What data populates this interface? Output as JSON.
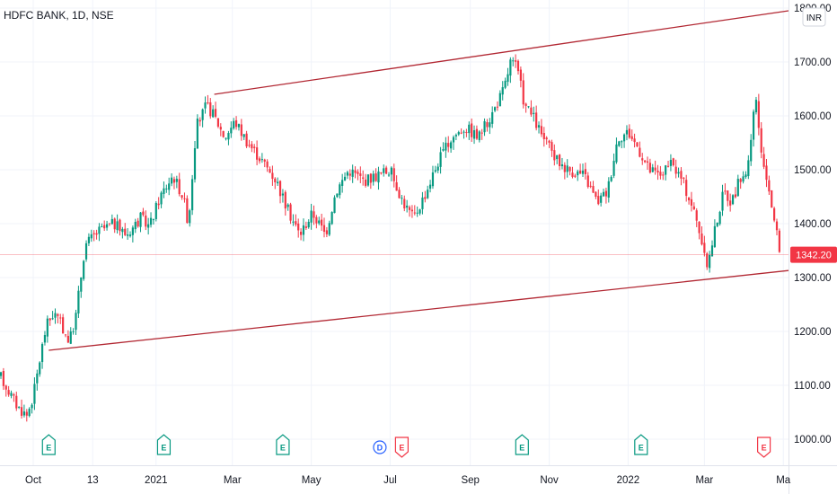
{
  "chart_data": {
    "type": "candlestick",
    "title": "HDFC BANK, 1D, NSE",
    "currency": "INR",
    "current_price": "1342.20",
    "ylim": [
      950,
      1810
    ],
    "y_ticks": [
      1000,
      1100,
      1200,
      1300,
      1400,
      1500,
      1600,
      1700,
      1800
    ],
    "y_tick_labels": [
      "1000.00",
      "1100.00",
      "1200.00",
      "1300.00",
      "1400.00",
      "1500.00",
      "1600.00",
      "1700.00",
      "1800.00"
    ],
    "x_ticks": [
      {
        "label": "Oct",
        "day": 0
      },
      {
        "label": "13",
        "day": 46
      },
      {
        "label": "2021",
        "day": 95
      },
      {
        "label": "Mar",
        "day": 154
      },
      {
        "label": "May",
        "day": 215
      },
      {
        "label": "Jul",
        "day": 276
      },
      {
        "label": "Sep",
        "day": 338
      },
      {
        "label": "Nov",
        "day": 399
      },
      {
        "label": "2022",
        "day": 460
      },
      {
        "label": "Mar",
        "day": 519
      },
      {
        "label": "Ma",
        "day": 580
      }
    ],
    "price_anchors": [
      [
        -25,
        1115
      ],
      [
        -12,
        1060
      ],
      [
        -5,
        1045
      ],
      [
        0,
        1080
      ],
      [
        6,
        1160
      ],
      [
        10,
        1210
      ],
      [
        16,
        1235
      ],
      [
        22,
        1210
      ],
      [
        28,
        1180
      ],
      [
        33,
        1230
      ],
      [
        40,
        1360
      ],
      [
        50,
        1385
      ],
      [
        62,
        1400
      ],
      [
        72,
        1380
      ],
      [
        83,
        1410
      ],
      [
        90,
        1395
      ],
      [
        98,
        1450
      ],
      [
        108,
        1490
      ],
      [
        116,
        1450
      ],
      [
        120,
        1400
      ],
      [
        126,
        1580
      ],
      [
        134,
        1620
      ],
      [
        140,
        1600
      ],
      [
        148,
        1560
      ],
      [
        156,
        1590
      ],
      [
        166,
        1550
      ],
      [
        176,
        1520
      ],
      [
        188,
        1480
      ],
      [
        196,
        1430
      ],
      [
        206,
        1380
      ],
      [
        216,
        1420
      ],
      [
        226,
        1380
      ],
      [
        234,
        1460
      ],
      [
        244,
        1500
      ],
      [
        256,
        1480
      ],
      [
        266,
        1490
      ],
      [
        276,
        1500
      ],
      [
        286,
        1440
      ],
      [
        294,
        1410
      ],
      [
        304,
        1460
      ],
      [
        314,
        1520
      ],
      [
        324,
        1560
      ],
      [
        334,
        1580
      ],
      [
        344,
        1560
      ],
      [
        354,
        1600
      ],
      [
        364,
        1650
      ],
      [
        369,
        1700
      ],
      [
        374,
        1690
      ],
      [
        380,
        1620
      ],
      [
        386,
        1600
      ],
      [
        394,
        1560
      ],
      [
        404,
        1520
      ],
      [
        414,
        1500
      ],
      [
        426,
        1490
      ],
      [
        436,
        1440
      ],
      [
        444,
        1460
      ],
      [
        452,
        1560
      ],
      [
        460,
        1570
      ],
      [
        468,
        1540
      ],
      [
        476,
        1500
      ],
      [
        484,
        1490
      ],
      [
        494,
        1510
      ],
      [
        502,
        1480
      ],
      [
        510,
        1430
      ],
      [
        516,
        1380
      ],
      [
        520,
        1320
      ],
      [
        523,
        1340
      ],
      [
        528,
        1400
      ],
      [
        534,
        1460
      ],
      [
        540,
        1440
      ],
      [
        546,
        1480
      ],
      [
        552,
        1500
      ],
      [
        556,
        1560
      ],
      [
        558,
        1650
      ],
      [
        561,
        1580
      ],
      [
        564,
        1500
      ],
      [
        568,
        1480
      ],
      [
        572,
        1420
      ],
      [
        575,
        1380
      ],
      [
        578,
        1342
      ]
    ],
    "trendlines": [
      {
        "label": "upper",
        "x1": 140,
        "y1": 1640,
        "x2": 590,
        "y2": 1795
      },
      {
        "label": "lower",
        "x1": 12,
        "y1": 1165,
        "x2": 590,
        "y2": 1313
      }
    ],
    "events": [
      {
        "label": "E",
        "day": 12,
        "type": "earnings",
        "color": "#089981"
      },
      {
        "label": "E",
        "day": 101,
        "type": "earnings",
        "color": "#089981"
      },
      {
        "label": "E",
        "day": 193,
        "type": "earnings",
        "color": "#089981"
      },
      {
        "label": "D",
        "day": 268,
        "type": "dividend",
        "color": "#2962ff"
      },
      {
        "label": "E",
        "day": 285,
        "type": "earnings",
        "color": "#f23645"
      },
      {
        "label": "E",
        "day": 378,
        "type": "earnings",
        "color": "#089981"
      },
      {
        "label": "E",
        "day": 470,
        "type": "earnings",
        "color": "#089981"
      },
      {
        "label": "E",
        "day": 565,
        "type": "earnings",
        "color": "#f23645"
      }
    ],
    "colors": {
      "up": "#089981",
      "down": "#f23645",
      "trendline": "#b22833",
      "grid": "#f0f3fa",
      "price_line": "#f23645"
    }
  }
}
